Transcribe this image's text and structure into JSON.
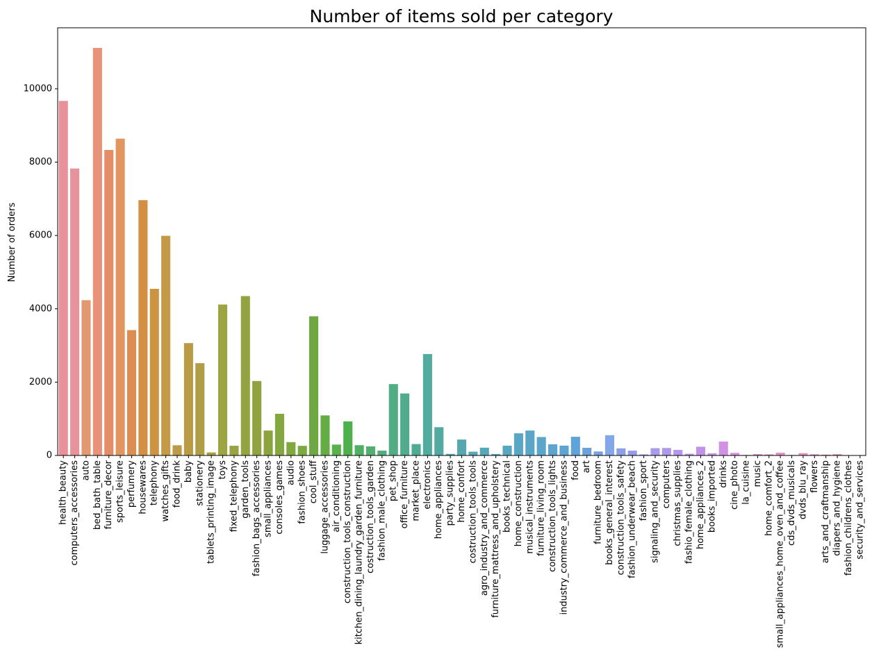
{
  "chart_data": {
    "type": "bar",
    "title": "Number of items sold per category",
    "xlabel": "",
    "ylabel": "Number of orders",
    "ylim": [
      0,
      11665
    ],
    "yticks": [
      0,
      2000,
      4000,
      6000,
      8000,
      10000
    ],
    "grid": false,
    "legend": "none",
    "categories": [
      "health_beauty",
      "computers_accessories",
      "auto",
      "bed_bath_table",
      "furniture_decor",
      "sports_leisure",
      "perfumery",
      "housewares",
      "telephony",
      "watches_gifts",
      "food_drink",
      "baby",
      "stationery",
      "tablets_printing_image",
      "toys",
      "fixed_telephony",
      "garden_tools",
      "fashion_bags_accessories",
      "small_appliances",
      "consoles_games",
      "audio",
      "fashion_shoes",
      "cool_stuff",
      "luggage_accessories",
      "air_conditioning",
      "construction_tools_construction",
      "kitchen_dining_laundry_garden_furniture",
      "costruction_tools_garden",
      "fashion_male_clothing",
      "pet_shop",
      "office_furniture",
      "market_place",
      "electronics",
      "home_appliances",
      "party_supplies",
      "home_confort",
      "costruction_tools_tools",
      "agro_industry_and_commerce",
      "furniture_mattress_and_upholstery",
      "books_technical",
      "home_construction",
      "musical_instruments",
      "furniture_living_room",
      "construction_tools_lights",
      "industry_commerce_and_business",
      "food",
      "art",
      "furniture_bedroom",
      "books_general_interest",
      "construction_tools_safety",
      "fashion_underwear_beach",
      "fashion_sport",
      "signaling_and_security",
      "computers",
      "christmas_supplies",
      "fashio_female_clothing",
      "home_appliances_2",
      "books_imported",
      "drinks",
      "cine_photo",
      "la_cuisine",
      "music",
      "home_comfort_2",
      "small_appliances_home_oven_and_coffee",
      "cds_dvds_musicals",
      "dvds_blu_ray",
      "flowers",
      "arts_and_craftmanship",
      "diapers_and_hygiene",
      "fashion_childrens_clothes",
      "security_and_services"
    ],
    "values": [
      9670,
      7827,
      4235,
      11115,
      8334,
      8641,
      3419,
      6964,
      4545,
      5991,
      278,
      3065,
      2517,
      83,
      4117,
      264,
      4347,
      2031,
      679,
      1137,
      364,
      262,
      3796,
      1092,
      297,
      929,
      280,
      247,
      132,
      1947,
      1691,
      311,
      2767,
      771,
      43,
      434,
      103,
      212,
      41,
      267,
      604,
      680,
      503,
      305,
      268,
      510,
      209,
      109,
      553,
      194,
      131,
      30,
      199,
      203,
      153,
      48,
      238,
      60,
      379,
      72,
      14,
      38,
      30,
      76,
      14,
      64,
      33,
      24,
      37,
      8,
      2
    ],
    "colors": [
      "#e8919a",
      "#e8929c",
      "#e3986f",
      "#e79279",
      "#e38e66",
      "#e2955f",
      "#dc8e52",
      "#d39043",
      "#cc9341",
      "#c49a47",
      "#bd9a48",
      "#b89b44",
      "#b09e46",
      "#a5a042",
      "#9da442",
      "#9ba341",
      "#93a342",
      "#8fa441",
      "#8ba43d",
      "#85a740",
      "#80a83f",
      "#7aaa40",
      "#6ea843",
      "#64ad45",
      "#58b149",
      "#4eb04b",
      "#4faf63",
      "#51b06e",
      "#52ae7b",
      "#50ad84",
      "#51ac8d",
      "#50ab95",
      "#51ab9f",
      "#52aaa3",
      "#54aaa8",
      "#55a9ae",
      "#56a8b3",
      "#56a8b8",
      "#57a8bd",
      "#58a7c1",
      "#59a7c5",
      "#5aa6c8",
      "#5ba6cb",
      "#5ca5cf",
      "#5da4d3",
      "#5fa4d8",
      "#6ca1da",
      "#78a2e2",
      "#84a6ea",
      "#8aa1ea",
      "#969ce8",
      "#a29ae8",
      "#ab9aea",
      "#b198ec",
      "#b497ec",
      "#bc97ea",
      "#c392e8",
      "#c895e6",
      "#d292e4",
      "#da90dc",
      "#dc90d6",
      "#de90d0",
      "#e191ca",
      "#e392c5",
      "#e392c0",
      "#e493bb",
      "#e495b7",
      "#e595b2",
      "#e694ad",
      "#e794a6",
      "#e895a1"
    ]
  }
}
